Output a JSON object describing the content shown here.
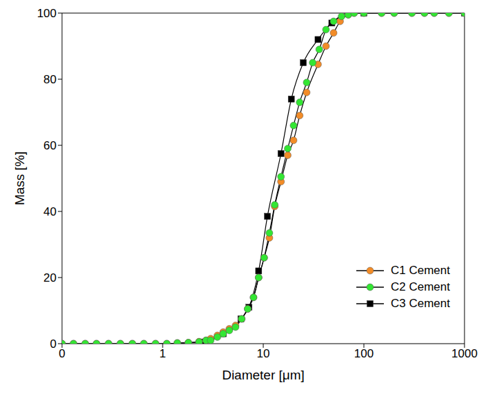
{
  "chart_data": {
    "type": "line",
    "x_label": "Diameter [μm]",
    "y_label": "Mass [%]",
    "log": "x",
    "grid": false,
    "legend": "lower right",
    "xlim": [
      0.1,
      1000
    ],
    "xticks": [
      {
        "value": 0.1,
        "label": "0"
      },
      1,
      10,
      100,
      1000
    ],
    "ylim": [
      0,
      100
    ],
    "yticks": [
      0,
      20,
      40,
      60,
      80,
      100
    ],
    "series": [
      {
        "name": "C1 Cement",
        "color": "#f28c28",
        "marker": "circle",
        "line_style": "solid",
        "x": [
          0.1,
          0.13,
          0.17,
          0.22,
          0.29,
          0.38,
          0.5,
          0.65,
          0.85,
          1.1,
          1.4,
          1.8,
          2.3,
          2.7,
          3.0,
          3.5,
          4.0,
          4.6,
          5.3,
          6.1,
          7.0,
          8.0,
          9.0,
          10.2,
          11.5,
          13.0,
          15.0,
          17.5,
          20,
          23,
          27,
          35,
          42,
          50,
          58,
          70,
          80,
          100,
          150,
          200,
          300,
          400,
          500,
          700,
          1000
        ],
        "values": [
          0,
          0,
          0,
          0,
          0,
          0,
          0,
          0,
          0,
          0,
          0.2,
          0.3,
          0.6,
          1,
          1.5,
          2.5,
          3.5,
          4.5,
          5.5,
          7.5,
          10.5,
          14,
          20,
          26,
          32,
          41.5,
          49,
          57,
          61.5,
          69,
          76,
          84.5,
          90,
          94,
          97.5,
          99.5,
          100,
          100,
          100,
          100,
          100,
          100,
          100,
          100,
          100
        ]
      },
      {
        "name": "C2 Cement",
        "color": "#33e633",
        "marker": "circle",
        "line_style": "solid",
        "x": [
          0.1,
          0.13,
          0.17,
          0.22,
          0.29,
          0.38,
          0.5,
          0.65,
          0.85,
          1.1,
          1.4,
          1.8,
          2.3,
          2.7,
          3.0,
          3.5,
          4.0,
          4.6,
          5.3,
          6.1,
          7.0,
          8.0,
          9.0,
          10.2,
          11.5,
          13.0,
          15.0,
          17.5,
          20,
          23,
          27,
          31,
          36,
          42,
          50,
          60,
          70,
          80,
          100,
          150,
          200,
          300,
          400,
          500,
          700,
          1000
        ],
        "values": [
          0,
          0,
          0,
          0,
          0,
          0,
          0,
          0,
          0,
          0,
          0.2,
          0.3,
          0.5,
          1,
          1,
          2,
          3,
          4,
          5,
          7.5,
          10.5,
          14,
          20,
          26,
          33.5,
          42,
          50.5,
          59,
          66,
          73,
          79,
          85,
          89,
          95,
          97.5,
          99,
          99.5,
          100,
          100,
          100,
          100,
          100,
          100,
          100,
          100,
          100
        ]
      },
      {
        "name": "C3 Cement",
        "color": "#000000",
        "marker": "square",
        "line_style": "solid",
        "x": [
          2.5,
          4.0,
          6.0,
          7.2,
          9.0,
          11.0,
          15.0,
          19.0,
          25.0,
          35.0,
          48.0,
          70.0,
          100,
          1000
        ],
        "values": [
          0.5,
          3,
          7.5,
          11,
          22,
          38.5,
          57.5,
          74,
          85,
          92,
          97,
          100,
          100,
          100
        ]
      }
    ]
  }
}
